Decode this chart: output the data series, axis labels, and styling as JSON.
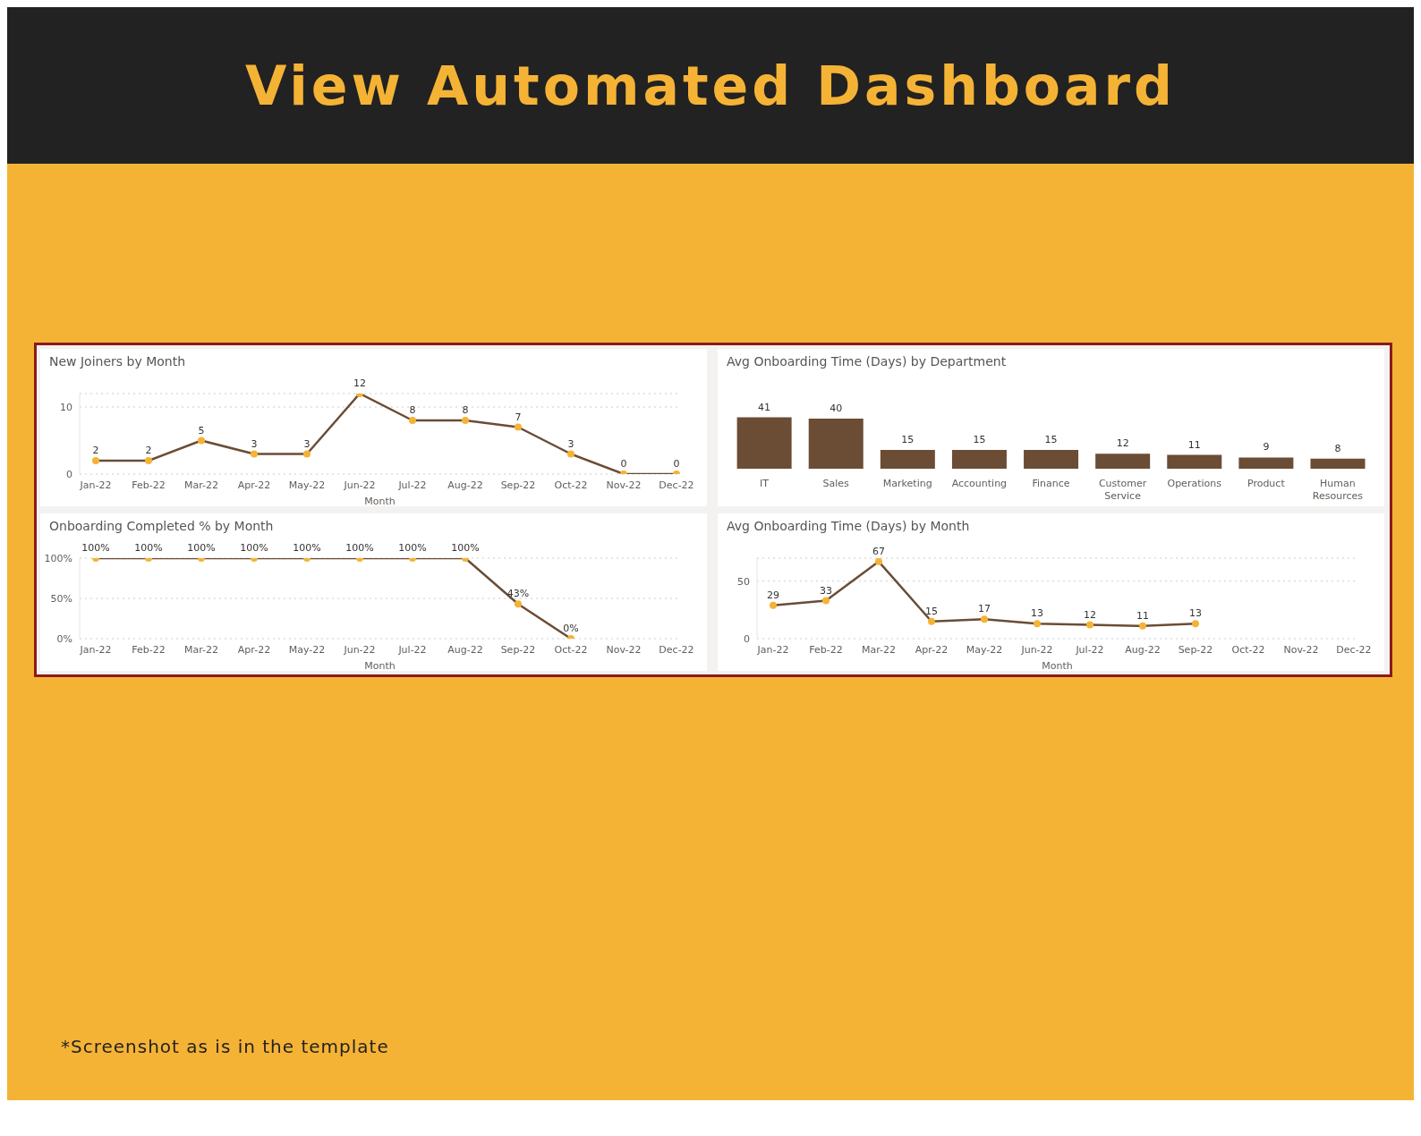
{
  "chart_data": [
    {
      "type": "other",
      "title": "View Automated Dashboard"
    },
    {
      "type": "line",
      "title": "New Joiners by Month",
      "xlabel": "Month",
      "categories": [
        "Jan-22",
        "Feb-22",
        "Mar-22",
        "Apr-22",
        "May-22",
        "Jun-22",
        "Jul-22",
        "Aug-22",
        "Sep-22",
        "Oct-22",
        "Nov-22",
        "Dec-22"
      ],
      "series": [
        {
          "color": "#6b4c35",
          "values": [
            2,
            2,
            5,
            3,
            3,
            12,
            8,
            8,
            7,
            3,
            0,
            0
          ]
        }
      ],
      "ylim": [
        0,
        12
      ],
      "yticks": [
        0,
        10
      ],
      "grid": "y",
      "marker": "circle",
      "data_labels": true
    },
    {
      "type": "bar",
      "title": "Avg Onboarding Time (Days) by Department",
      "categories": [
        "IT",
        "Sales",
        "Marketing",
        "Accounting",
        "Finance",
        "Customer Service",
        "Operations",
        "Product",
        "Human Resources"
      ],
      "values": [
        41,
        40,
        15,
        15,
        15,
        12,
        11,
        9,
        8
      ],
      "color": "#6b4c35",
      "data_labels": true,
      "tick_labels": "x"
    },
    {
      "type": "line",
      "title": "Onboarding Completed % by Month",
      "xlabel": "Month",
      "categories": [
        "Jan-22",
        "Feb-22",
        "Mar-22",
        "Apr-22",
        "May-22",
        "Jun-22",
        "Jul-22",
        "Aug-22",
        "Sep-22",
        "Oct-22",
        "Nov-22",
        "Dec-22"
      ],
      "series": [
        {
          "color": "#6b4c35",
          "values": [
            100,
            100,
            100,
            100,
            100,
            100,
            100,
            100,
            43,
            0,
            null,
            null
          ],
          "value_labels": [
            "100%",
            "100%",
            "100%",
            "100%",
            "100%",
            "100%",
            "100%",
            "100%",
            "43%",
            "0%",
            null,
            null
          ]
        }
      ],
      "ylim": [
        0,
        100
      ],
      "yticks": [
        {
          "value": 0,
          "label": "0%"
        },
        {
          "value": 50,
          "label": "50%"
        },
        {
          "value": 100,
          "label": "100%"
        }
      ],
      "grid": "y",
      "marker": "circle"
    },
    {
      "type": "line",
      "title": "Avg Onboarding Time (Days) by Month",
      "xlabel": "Month",
      "categories": [
        "Jan-22",
        "Feb-22",
        "Mar-22",
        "Apr-22",
        "May-22",
        "Jun-22",
        "Jul-22",
        "Aug-22",
        "Sep-22",
        "Oct-22",
        "Nov-22",
        "Dec-22"
      ],
      "series": [
        {
          "color": "#6b4c35",
          "values": [
            29,
            33,
            67,
            15,
            17,
            13,
            12,
            11,
            13,
            null,
            null,
            null
          ]
        }
      ],
      "ylim": [
        0,
        70
      ],
      "yticks": [
        0,
        50
      ],
      "grid": "y",
      "marker": "circle",
      "data_labels": true
    },
    {
      "type": "other",
      "annotations": [
        "*Screenshot as is in the template"
      ]
    }
  ]
}
